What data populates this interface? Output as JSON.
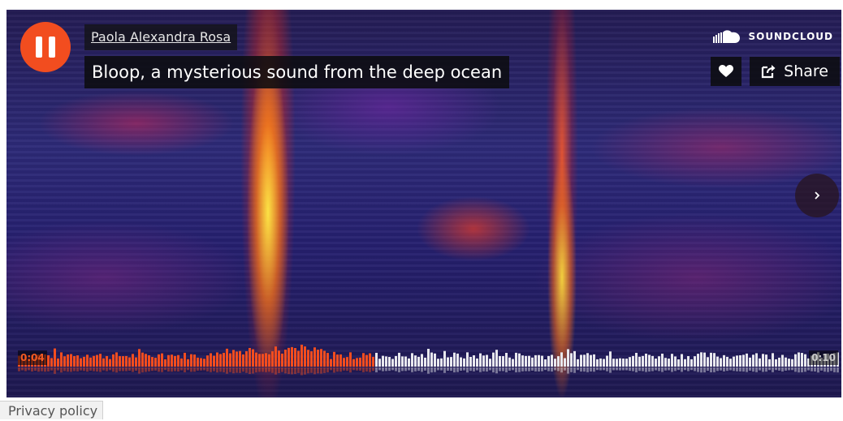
{
  "player": {
    "artist": "Paola Alexandra Rosa",
    "title": "Bloop, a mysterious sound from the deep ocean",
    "brand": "SOUNDCLOUD",
    "share_label": "Share",
    "current_time": "0:04",
    "total_time": "0:10",
    "progress": 0.4,
    "state": "playing"
  },
  "icons": {
    "play": "pause-icon",
    "like": "heart-icon",
    "share": "share-icon",
    "next": "chevron-right-icon",
    "brand": "soundcloud-logo-icon"
  },
  "colors": {
    "accent": "#f24d1f",
    "played": "#f24d1f",
    "unplayed": "#e8e8ee"
  },
  "footer": {
    "privacy_label": "Privacy policy"
  }
}
